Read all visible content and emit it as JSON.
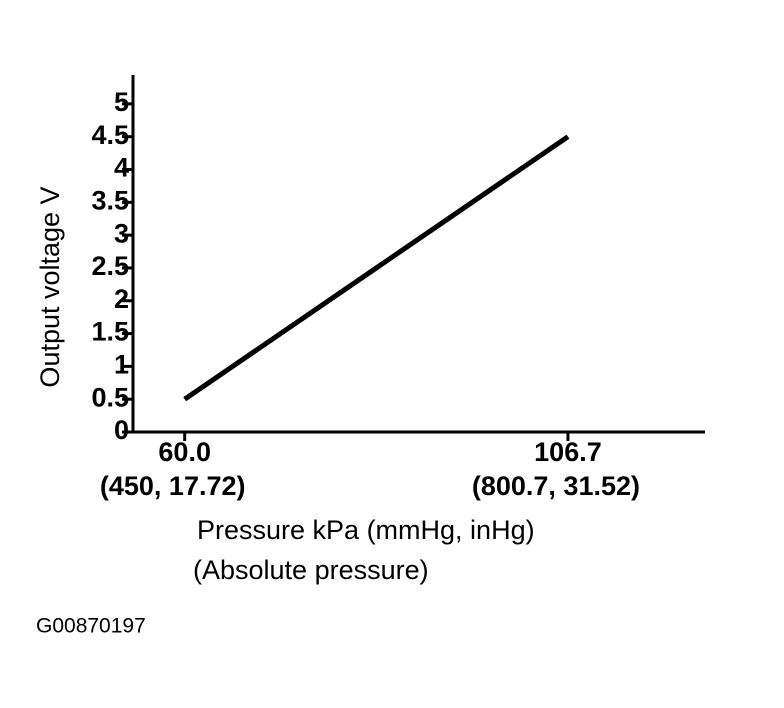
{
  "chart_data": {
    "type": "line",
    "y_label": "Output voltage V",
    "x_label": [
      "Pressure kPa (mmHg, inHg)",
      "(Absolute pressure)"
    ],
    "figure_id": "G00870197",
    "x": [
      60,
      106.7
    ],
    "series": [
      {
        "color": "#000000",
        "values": [
          0.5,
          4.5
        ]
      }
    ],
    "xlim": [
      53.7,
      123.4
    ],
    "xticks": [
      {
        "value": 60,
        "label": "60.0"
      },
      {
        "value": 106.7,
        "label": "106.7"
      }
    ],
    "xtick_sublabels": [
      "(450, 17.72)",
      "(800.7, 31.52)"
    ],
    "ylim": [
      0,
      5.44
    ],
    "yticks": [
      0,
      0.5,
      1,
      1.5,
      2,
      2.5,
      3,
      3.5,
      4,
      4.5,
      5
    ]
  }
}
